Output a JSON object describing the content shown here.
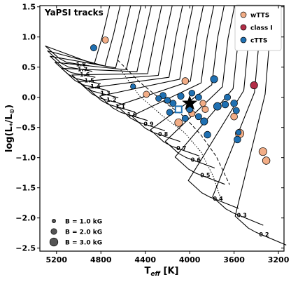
{
  "chart_data": {
    "type": "scatter",
    "title": "YaPSI tracks",
    "xlabel": "T_eff [K]",
    "ylabel": "log(L_*/L_⊙)",
    "xlim": [
      5350,
      3150
    ],
    "ylim": [
      -2.55,
      1.52
    ],
    "x_ticks": [
      5200,
      4800,
      4400,
      4000,
      3600,
      3200
    ],
    "y_ticks": [
      1.5,
      1.0,
      0.5,
      0.0,
      -0.5,
      -1.0,
      -1.5,
      -2.0,
      -2.5
    ],
    "x_tick_labels": [
      "5200",
      "4800",
      "4400",
      "4000",
      "3600",
      "3200"
    ],
    "y_tick_labels": [
      "1.5",
      "1.0",
      "0.5",
      "0.0",
      "−0.5",
      "−1.0",
      "−1.5",
      "−2.0",
      "−2.5"
    ],
    "track_labels": [
      {
        "label": "1.8",
        "x": 4980,
        "y": 0.55
      },
      {
        "label": "1.7",
        "x": 4965,
        "y": 0.47
      },
      {
        "label": "1.6",
        "x": 4945,
        "y": 0.38
      },
      {
        "label": "1.5",
        "x": 4905,
        "y": 0.28
      },
      {
        "label": "1.4",
        "x": 4850,
        "y": 0.18
      },
      {
        "label": "1.3",
        "x": 4760,
        "y": 0.07
      },
      {
        "label": "1.2",
        "x": 4705,
        "y": -0.04
      },
      {
        "label": "1.1",
        "x": 4625,
        "y": -0.15
      },
      {
        "label": "1.0",
        "x": 4520,
        "y": -0.28
      },
      {
        "label": "0.9",
        "x": 4370,
        "y": -0.44
      },
      {
        "label": "0.8",
        "x": 4240,
        "y": -0.61
      },
      {
        "label": "0.7",
        "x": 4075,
        "y": -0.84
      },
      {
        "label": "0.6",
        "x": 3945,
        "y": -1.03
      },
      {
        "label": "0.5",
        "x": 3860,
        "y": -1.29
      },
      {
        "label": "0.4",
        "x": 3745,
        "y": -1.68
      },
      {
        "label": "0.3",
        "x": 3530,
        "y": -1.95
      },
      {
        "label": "0.2",
        "x": 3330,
        "y": -2.27
      }
    ],
    "series": [
      {
        "name": "wTTS",
        "color": "#f2ad86",
        "points": [
          {
            "x": 4760,
            "y": 0.95,
            "B": 1.6
          },
          {
            "x": 4390,
            "y": 0.05,
            "B": 1.6
          },
          {
            "x": 4040,
            "y": 0.27,
            "B": 1.8
          },
          {
            "x": 4100,
            "y": -0.42,
            "B": 2.2
          },
          {
            "x": 3980,
            "y": -0.27,
            "B": 1.6
          },
          {
            "x": 3880,
            "y": -0.1,
            "B": 1.5
          },
          {
            "x": 3860,
            "y": -0.2,
            "B": 1.6
          },
          {
            "x": 3600,
            "y": -0.32,
            "B": 1.8
          },
          {
            "x": 3550,
            "y": -0.6,
            "B": 2.6
          },
          {
            "x": 3340,
            "y": -0.9,
            "B": 2.3
          },
          {
            "x": 3310,
            "y": -1.05,
            "B": 2.1
          }
        ]
      },
      {
        "name": "class I",
        "color": "#b22d47",
        "points": [
          {
            "x": 3420,
            "y": 0.2,
            "B": 2.0
          }
        ]
      },
      {
        "name": "cTTS",
        "color": "#1f70b2",
        "points": [
          {
            "x": 4865,
            "y": 0.82,
            "B": 1.6
          },
          {
            "x": 4510,
            "y": 0.18,
            "B": 1.1
          },
          {
            "x": 4240,
            "y": 0.03,
            "B": 1.6
          },
          {
            "x": 4200,
            "y": -0.05,
            "B": 1.5
          },
          {
            "x": 4150,
            "y": -0.1,
            "B": 1.6
          },
          {
            "x": 4080,
            "y": 0.02,
            "B": 1.7
          },
          {
            "x": 3980,
            "y": 0.07,
            "B": 1.5
          },
          {
            "x": 3920,
            "y": 0.0,
            "B": 1.6
          },
          {
            "x": 3780,
            "y": 0.3,
            "B": 2.0
          },
          {
            "x": 3750,
            "y": -0.15,
            "B": 2.2
          },
          {
            "x": 3680,
            "y": -0.12,
            "B": 1.8
          },
          {
            "x": 3660,
            "y": 0.0,
            "B": 1.6
          },
          {
            "x": 3600,
            "y": -0.1,
            "B": 1.8
          },
          {
            "x": 3580,
            "y": -0.22,
            "B": 1.6
          },
          {
            "x": 3560,
            "y": -0.58,
            "B": 1.2
          },
          {
            "x": 3570,
            "y": -0.7,
            "B": 1.8
          },
          {
            "x": 3920,
            "y": -0.32,
            "B": 1.6
          },
          {
            "x": 3870,
            "y": -0.4,
            "B": 2.0
          },
          {
            "x": 4040,
            "y": -0.35,
            "B": 1.6
          },
          {
            "x": 4000,
            "y": -0.2,
            "B": 1.7
          },
          {
            "x": 3840,
            "y": -0.62,
            "B": 1.8
          },
          {
            "x": 4180,
            "y": -0.25,
            "B": 1.6
          },
          {
            "x": 4280,
            "y": -0.02,
            "B": 1.4
          }
        ]
      }
    ],
    "special_markers": [
      {
        "kind": "star",
        "x": 4000,
        "y": -0.1
      },
      {
        "kind": "open-square",
        "x": 4100,
        "y": -0.2
      }
    ],
    "size_legend": [
      {
        "label": "B = 1.0 kG",
        "B": 1.0
      },
      {
        "label": "B = 2.0 kG",
        "B": 2.0
      },
      {
        "label": "B = 3.0 kG",
        "B": 3.0
      }
    ],
    "legend_position": "top-right",
    "grid": false
  }
}
